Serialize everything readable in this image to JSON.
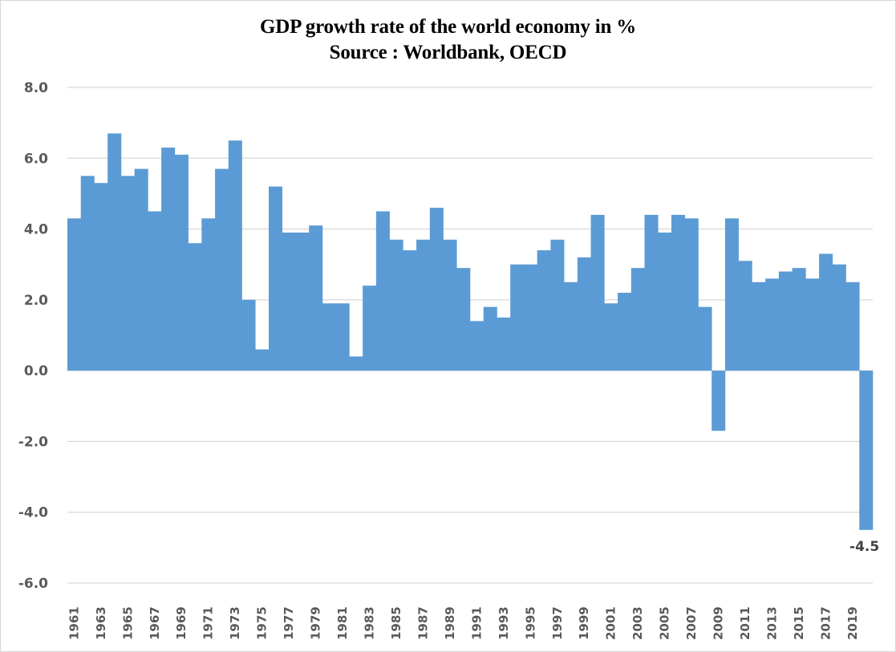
{
  "chart_data": {
    "type": "bar",
    "title": "GDP growth rate of the world economy in  %",
    "subtitle": "Source : Worldbank, OECD",
    "xlabel": "",
    "ylabel": "",
    "ylim": [
      -6,
      8
    ],
    "yticks": [
      8,
      6,
      4,
      2,
      0,
      -2,
      -4,
      -6
    ],
    "ytick_labels": [
      "8.0",
      "6.0",
      "4.0",
      "2.0",
      "0.0",
      "-2.0",
      "-4.0",
      "-6.0"
    ],
    "grid": true,
    "legend": "none",
    "bar_color": "#5B9BD5",
    "categories": [
      "1961",
      "1962",
      "1963",
      "1964",
      "1965",
      "1966",
      "1967",
      "1968",
      "1969",
      "1970",
      "1971",
      "1972",
      "1973",
      "1974",
      "1975",
      "1976",
      "1977",
      "1978",
      "1979",
      "1980",
      "1981",
      "1982",
      "1983",
      "1984",
      "1985",
      "1986",
      "1987",
      "1988",
      "1989",
      "1990",
      "1991",
      "1992",
      "1993",
      "1994",
      "1995",
      "1996",
      "1997",
      "1998",
      "1999",
      "2000",
      "2001",
      "2002",
      "2003",
      "2004",
      "2005",
      "2006",
      "2007",
      "2008",
      "2009",
      "2010",
      "2011",
      "2012",
      "2013",
      "2014",
      "2015",
      "2016",
      "2017",
      "2018",
      "2019",
      "2020"
    ],
    "xtick_labels_shown": [
      "1961",
      "1963",
      "1965",
      "1967",
      "1969",
      "1971",
      "1973",
      "1975",
      "1977",
      "1979",
      "1981",
      "1983",
      "1985",
      "1987",
      "1989",
      "1991",
      "1993",
      "1995",
      "1997",
      "1999",
      "2001",
      "2003",
      "2005",
      "2007",
      "2009",
      "2011",
      "2013",
      "2015",
      "2017",
      "2019"
    ],
    "values": [
      4.3,
      5.5,
      5.3,
      6.7,
      5.5,
      5.7,
      4.5,
      6.3,
      6.1,
      3.6,
      4.3,
      5.7,
      6.5,
      2.0,
      0.6,
      5.2,
      3.9,
      3.9,
      4.1,
      1.9,
      1.9,
      0.4,
      2.4,
      4.5,
      3.7,
      3.4,
      3.7,
      4.6,
      3.7,
      2.9,
      1.4,
      1.8,
      1.5,
      3.0,
      3.0,
      3.4,
      3.7,
      2.5,
      3.2,
      4.4,
      1.9,
      2.2,
      2.9,
      4.4,
      3.9,
      4.4,
      4.3,
      1.8,
      -1.7,
      4.3,
      3.1,
      2.5,
      2.6,
      2.8,
      2.9,
      2.6,
      3.3,
      3.0,
      2.5,
      -4.5
    ],
    "data_labels": [
      {
        "category": "2020",
        "text": "-4.5"
      }
    ]
  }
}
